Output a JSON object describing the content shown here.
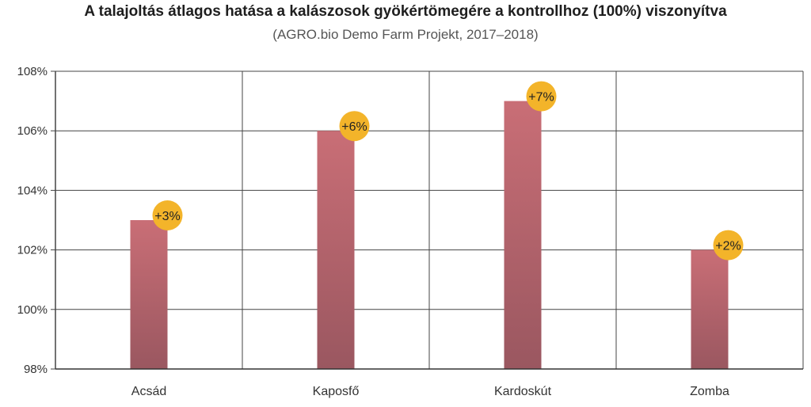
{
  "chart_data": {
    "type": "bar",
    "title": "A talajoltás átlagos hatása a kalászosok gyökértömegére a kontrollhoz (100%) viszonyítva",
    "subtitle": "(AGRO.bio Demo Farm Projekt, 2017–2018)",
    "categories": [
      "Acsád",
      "Kaposfő",
      "Kardoskút",
      "Zomba"
    ],
    "values": [
      103,
      106,
      107,
      102
    ],
    "data_labels": [
      "+3%",
      "+6%",
      "+7%",
      "+2%"
    ],
    "ylim": [
      98,
      108
    ],
    "yticks": [
      98,
      100,
      102,
      104,
      106,
      108
    ],
    "ytick_labels": [
      "98%",
      "100%",
      "102%",
      "104%",
      "106%",
      "108%"
    ],
    "grid": true,
    "colors": {
      "bar_top": "#c96e76",
      "bar_bottom": "#9a5760",
      "badge": "#f3b42a",
      "grid": "#444444"
    }
  }
}
